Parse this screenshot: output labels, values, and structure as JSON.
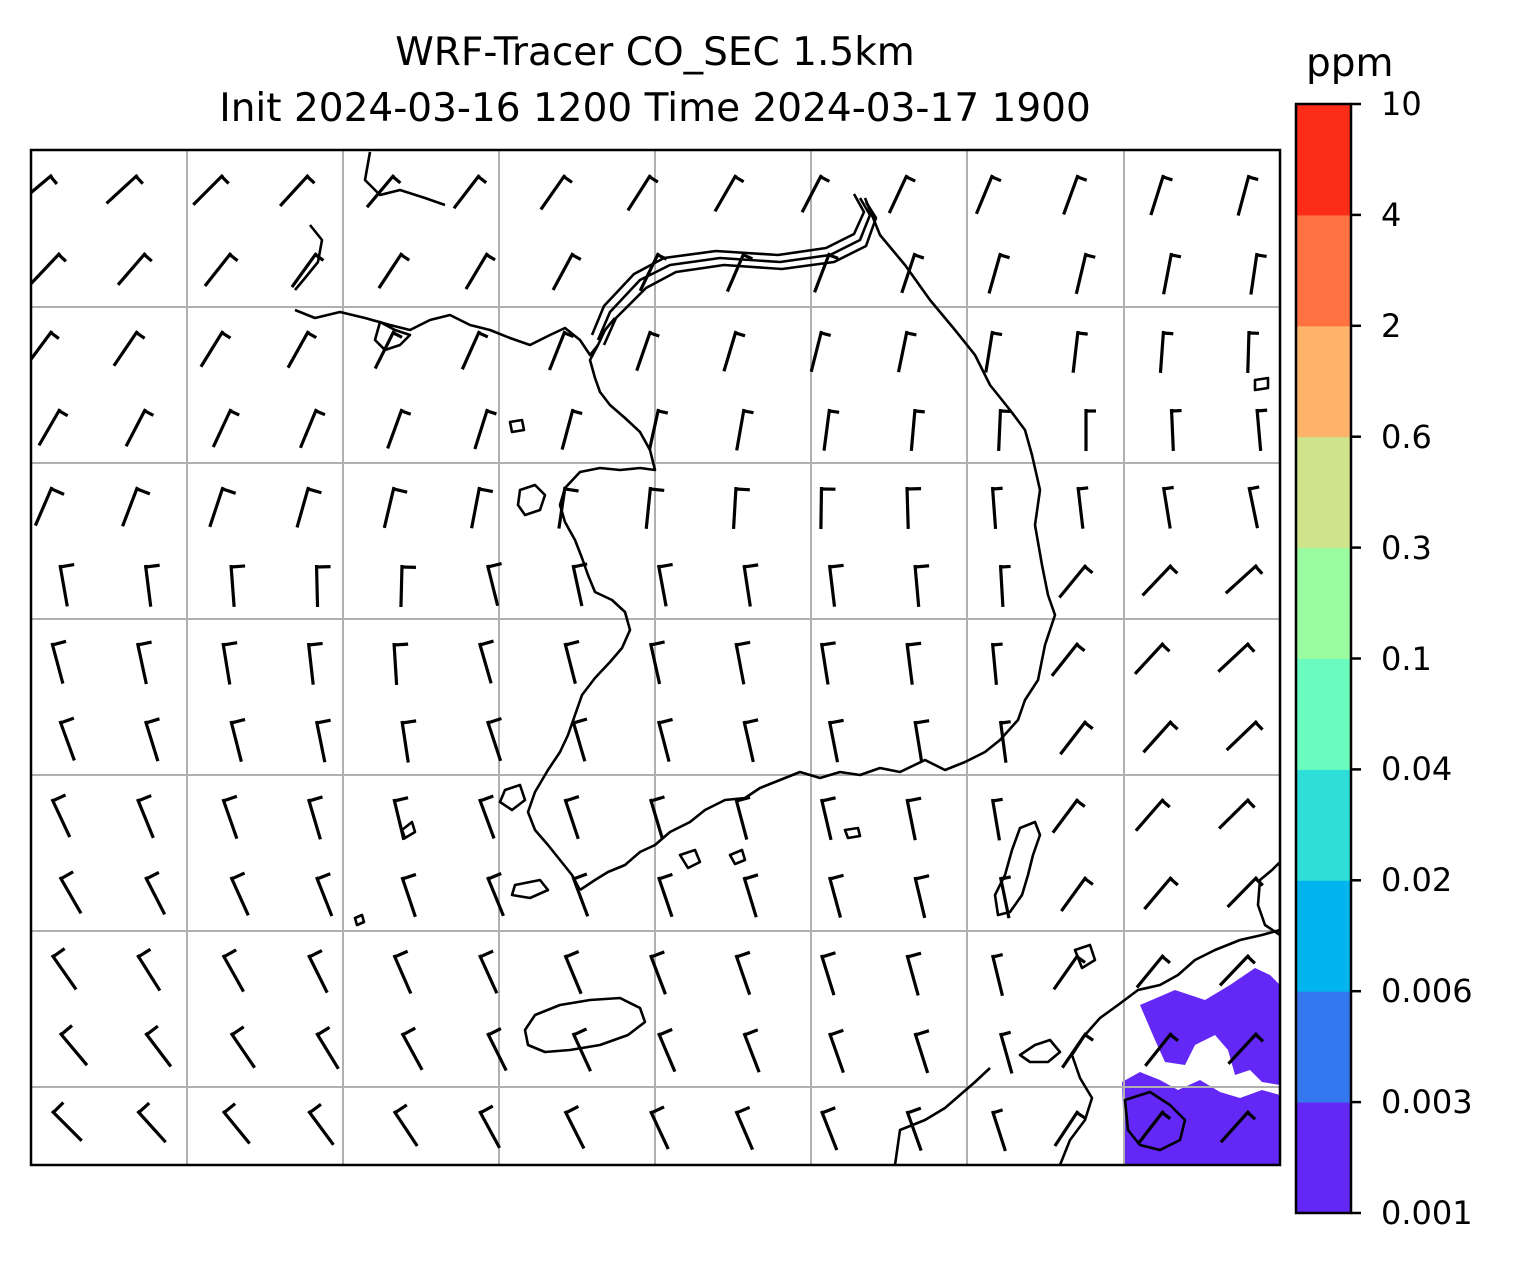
{
  "title": {
    "line1": "WRF-Tracer CO_SEC 1.5km",
    "line2": "Init 2024-03-16 1200 Time 2024-03-17 1900"
  },
  "colorbar": {
    "unit": "ppm",
    "levels": [
      "0.001",
      "0.003",
      "0.006",
      "0.02",
      "0.04",
      "0.1",
      "0.3",
      "0.6",
      "2",
      "4",
      "10"
    ],
    "colors": [
      "#6428f6",
      "#3478f0",
      "#00b4ee",
      "#2ddfd8",
      "#69fcbe",
      "#9afca0",
      "#cfe38a",
      "#fdb36a",
      "#fe7140",
      "#fb2c18"
    ]
  },
  "colors": {
    "plume": "#6428f6",
    "grid": "#b0b0b0",
    "coast": "#000000"
  }
}
